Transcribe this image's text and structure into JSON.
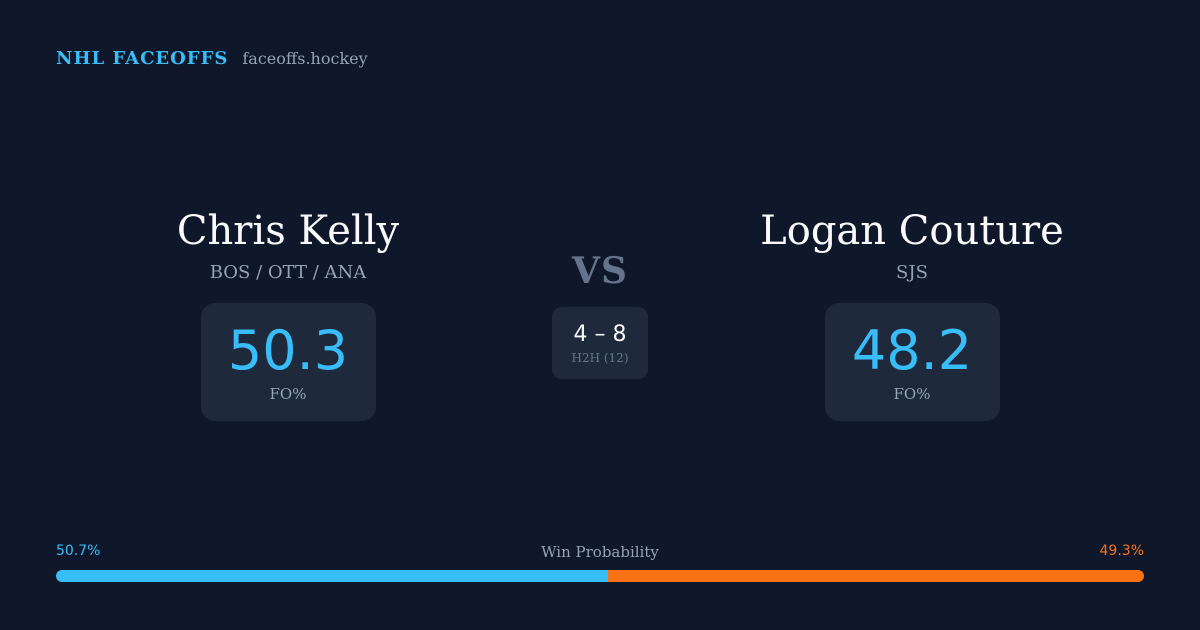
{
  "header": {
    "brand": "NHL FACEOFFS",
    "site": "faceoffs.hockey"
  },
  "player_left": {
    "name": "Chris Kelly",
    "teams": "BOS / OTT / ANA",
    "stat_value": "50.3",
    "stat_label": "FO%"
  },
  "player_right": {
    "name": "Logan Couture",
    "teams": "SJS",
    "stat_value": "48.2",
    "stat_label": "FO%"
  },
  "matchup": {
    "vs": "VS",
    "h2h_score": "4 – 8",
    "h2h_label": "H2H (12)"
  },
  "win_probability": {
    "title": "Win Probability",
    "left_label": "50.7%",
    "right_label": "49.3%",
    "left_value": 50.7,
    "right_value": 49.3,
    "left_color": "#38bdf8",
    "right_color": "#f97316"
  }
}
